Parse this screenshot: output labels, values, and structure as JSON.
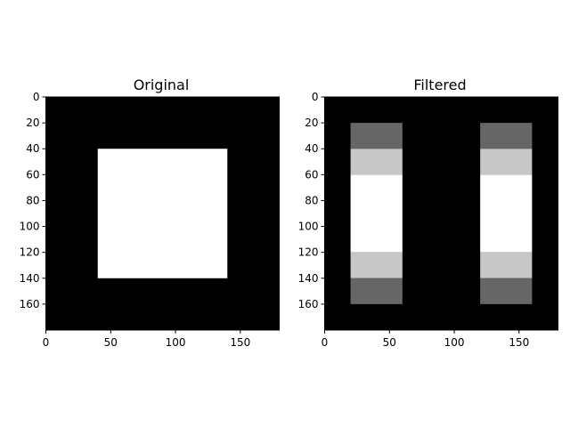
{
  "chart_data": [
    {
      "type": "heatmap",
      "title": "Original",
      "colormap": "gray",
      "vrange": [
        0,
        1
      ],
      "shape": [
        180,
        180
      ],
      "xlim": [
        0,
        180
      ],
      "ylim": [
        180,
        0
      ],
      "xticks": [
        "0",
        "50",
        "100",
        "150"
      ],
      "yticks": [
        "0",
        "20",
        "40",
        "60",
        "80",
        "100",
        "120",
        "140",
        "160"
      ],
      "background": 0.0,
      "regions": [
        {
          "x": [
            40,
            140
          ],
          "y": [
            40,
            140
          ],
          "value": 1.0
        }
      ]
    },
    {
      "type": "heatmap",
      "title": "Filtered",
      "colormap": "gray",
      "vrange": [
        0,
        1
      ],
      "shape": [
        180,
        180
      ],
      "xlim": [
        0,
        180
      ],
      "ylim": [
        180,
        0
      ],
      "xticks": [
        "0",
        "50",
        "100",
        "150"
      ],
      "yticks": [
        "0",
        "20",
        "40",
        "60",
        "80",
        "100",
        "120",
        "140",
        "160"
      ],
      "background": 0.0,
      "regions": [
        {
          "x": [
            20,
            60
          ],
          "y": [
            20,
            40
          ],
          "value": 0.4
        },
        {
          "x": [
            20,
            60
          ],
          "y": [
            40,
            60
          ],
          "value": 0.78
        },
        {
          "x": [
            20,
            60
          ],
          "y": [
            60,
            120
          ],
          "value": 1.0
        },
        {
          "x": [
            20,
            60
          ],
          "y": [
            120,
            140
          ],
          "value": 0.78
        },
        {
          "x": [
            20,
            60
          ],
          "y": [
            140,
            160
          ],
          "value": 0.4
        },
        {
          "x": [
            120,
            160
          ],
          "y": [
            20,
            40
          ],
          "value": 0.4
        },
        {
          "x": [
            120,
            160
          ],
          "y": [
            40,
            60
          ],
          "value": 0.78
        },
        {
          "x": [
            120,
            160
          ],
          "y": [
            60,
            120
          ],
          "value": 1.0
        },
        {
          "x": [
            120,
            160
          ],
          "y": [
            120,
            140
          ],
          "value": 0.78
        },
        {
          "x": [
            120,
            160
          ],
          "y": [
            140,
            160
          ],
          "value": 0.4
        }
      ]
    }
  ]
}
